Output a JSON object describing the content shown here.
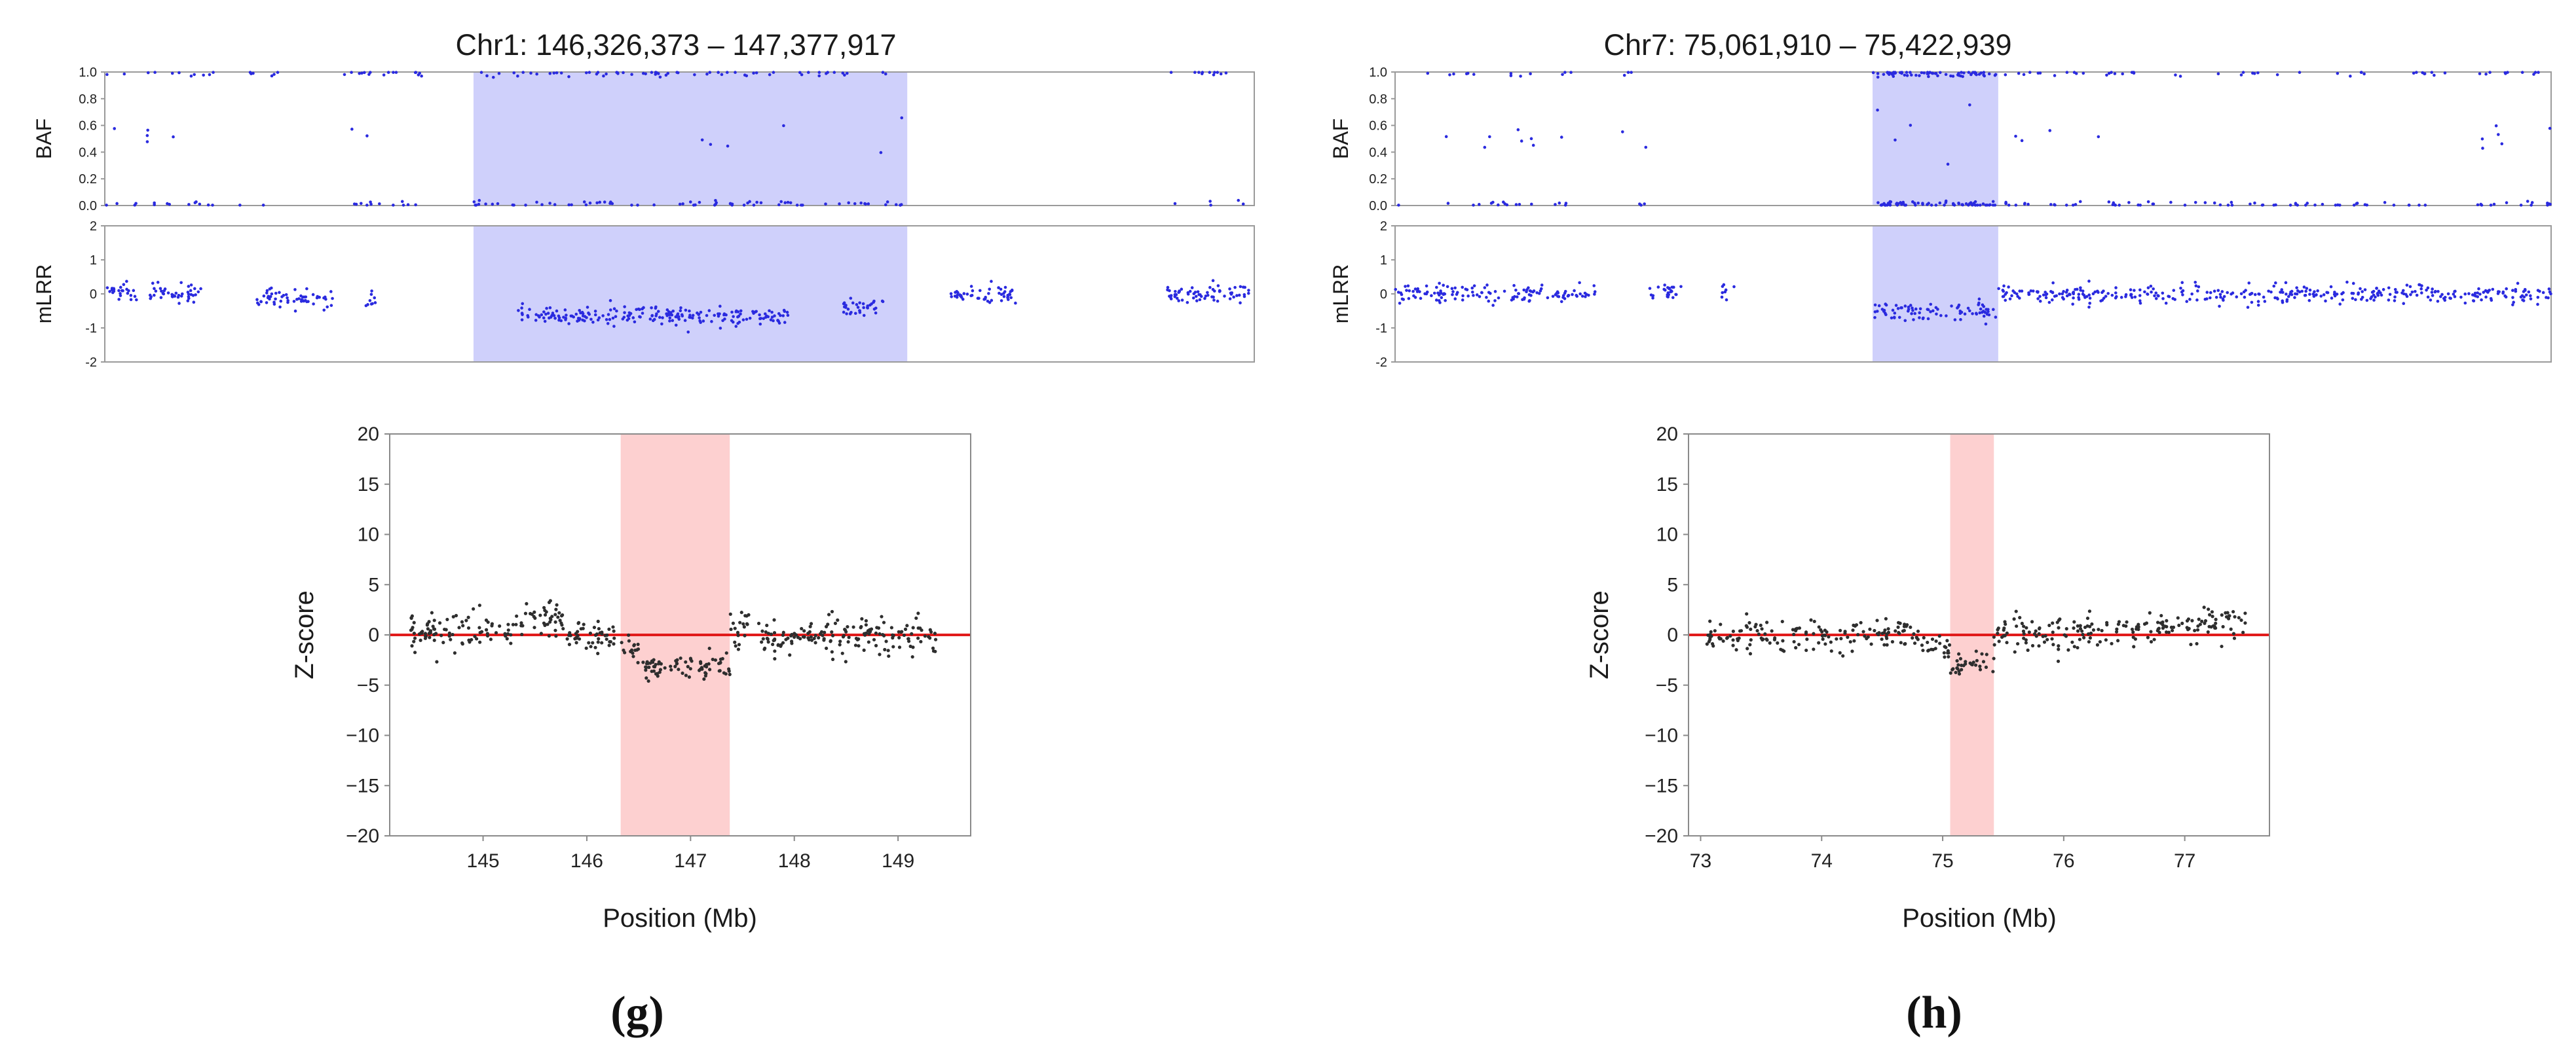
{
  "chart_data": [
    {
      "panel_label": "(g)",
      "title": "Chr1: 146,326,373 – 147,377,917",
      "baf": {
        "type": "scatter",
        "ylabel": "BAF",
        "ylim": [
          0,
          1
        ],
        "yticks": [
          "0.0",
          "0.2",
          "0.4",
          "0.6",
          "0.8",
          "1.0"
        ],
        "xlim": [
          144.3,
          149.6
        ],
        "highlight": [
          146.0,
          148.0
        ],
        "highlight_color": "#cfd0fb",
        "point_color": "#2a2adf",
        "segments": [
          {
            "x0": 144.3,
            "x1": 144.8,
            "level": "spread"
          },
          {
            "x0": 144.9,
            "x1": 145.1,
            "level": "few"
          },
          {
            "x0": 145.4,
            "x1": 145.8,
            "level": "spread"
          },
          {
            "x0": 146.0,
            "x1": 148.0,
            "level": "loh"
          },
          {
            "x0": 149.2,
            "x1": 149.6,
            "level": "edge"
          }
        ]
      },
      "mlrr": {
        "type": "scatter",
        "ylabel": "mLRR",
        "ylim": [
          -2,
          2
        ],
        "yticks": [
          "2",
          "1",
          "0",
          "-1",
          "-2"
        ],
        "xlim": [
          144.3,
          149.6
        ],
        "highlight": [
          146.0,
          148.0
        ],
        "highlight_color": "#cfd0fb",
        "point_color": "#2a2adf",
        "segments": [
          {
            "x0": 144.3,
            "x1": 144.45,
            "mean": 0.05
          },
          {
            "x0": 144.5,
            "x1": 144.75,
            "mean": 0.0
          },
          {
            "x0": 145.0,
            "x1": 145.35,
            "mean": -0.1
          },
          {
            "x0": 145.5,
            "x1": 145.55,
            "mean": -0.2
          },
          {
            "x0": 146.2,
            "x1": 147.45,
            "mean": -0.65
          },
          {
            "x0": 147.7,
            "x1": 147.9,
            "mean": -0.4
          },
          {
            "x0": 148.2,
            "x1": 148.5,
            "mean": 0.0
          },
          {
            "x0": 149.2,
            "x1": 149.6,
            "mean": 0.0
          }
        ]
      },
      "zscore": {
        "type": "scatter",
        "xlabel": "Position (Mb)",
        "ylabel": "Z-score",
        "xlim": [
          144.1,
          149.7
        ],
        "ylim": [
          -20,
          20
        ],
        "xticks": [
          145,
          146,
          147,
          148,
          149
        ],
        "yticks": [
          20,
          15,
          10,
          5,
          0,
          -5,
          -10,
          -15,
          -20
        ],
        "highlight": [
          146.326373,
          147.377917
        ],
        "highlight_color": "#fdd0d0",
        "baseline": 0,
        "baseline_color": "#e11b1b",
        "point_color": "#2e2e2e",
        "segments": [
          {
            "x0": 144.3,
            "x1": 145.3,
            "mean": 0.3,
            "sd": 1.0
          },
          {
            "x0": 145.3,
            "x1": 145.8,
            "mean": 1.5,
            "sd": 1.0
          },
          {
            "x0": 145.8,
            "x1": 146.326,
            "mean": -0.1,
            "sd": 0.6
          },
          {
            "x0": 146.326,
            "x1": 146.5,
            "mean": -1.5,
            "sd": 0.8
          },
          {
            "x0": 146.5,
            "x1": 147.38,
            "mean": -3.2,
            "sd": 0.6
          },
          {
            "x0": 147.38,
            "x1": 147.6,
            "mean": 0.8,
            "sd": 1.2
          },
          {
            "x0": 147.6,
            "x1": 148.0,
            "mean": -0.5,
            "sd": 0.9
          },
          {
            "x0": 148.0,
            "x1": 148.3,
            "mean": 0.0,
            "sd": 0.5
          },
          {
            "x0": 148.3,
            "x1": 149.4,
            "mean": 0.1,
            "sd": 1.0
          }
        ]
      }
    },
    {
      "panel_label": "(h)",
      "title": "Chr7: 75,061,910 – 75,422,939",
      "baf": {
        "type": "scatter",
        "ylabel": "BAF",
        "ylim": [
          0,
          1
        ],
        "yticks": [
          "0.0",
          "0.2",
          "0.4",
          "0.6",
          "0.8",
          "1.0"
        ],
        "xlim": [
          73.0,
          77.6
        ],
        "highlight": [
          74.9,
          75.4
        ],
        "highlight_color": "#cfd0fb",
        "point_color": "#2a2adf",
        "segments": [
          {
            "x0": 73.0,
            "x1": 73.3,
            "level": "few"
          },
          {
            "x0": 73.3,
            "x1": 73.7,
            "level": "spread"
          },
          {
            "x0": 73.9,
            "x1": 74.0,
            "level": "few"
          },
          {
            "x0": 74.9,
            "x1": 75.4,
            "level": "loh"
          },
          {
            "x0": 75.4,
            "x1": 75.8,
            "level": "spread"
          },
          {
            "x0": 75.8,
            "x1": 77.2,
            "level": "homo"
          },
          {
            "x0": 77.3,
            "x1": 77.6,
            "level": "spread"
          }
        ]
      },
      "mlrr": {
        "type": "scatter",
        "ylabel": "mLRR",
        "ylim": [
          -2,
          2
        ],
        "yticks": [
          "2",
          "1",
          "0",
          "-1",
          "-2"
        ],
        "xlim": [
          73.0,
          77.6
        ],
        "highlight": [
          74.9,
          75.4
        ],
        "highlight_color": "#cfd0fb",
        "point_color": "#2a2adf",
        "segments": [
          {
            "x0": 73.0,
            "x1": 73.8,
            "mean": 0.0
          },
          {
            "x0": 74.0,
            "x1": 74.15,
            "mean": 0.05
          },
          {
            "x0": 74.3,
            "x1": 74.35,
            "mean": 0.0
          },
          {
            "x0": 74.9,
            "x1": 75.4,
            "mean": -0.5
          },
          {
            "x0": 75.4,
            "x1": 77.6,
            "mean": 0.0
          }
        ]
      },
      "zscore": {
        "type": "scatter",
        "xlabel": "Position (Mb)",
        "ylabel": "Z-score",
        "xlim": [
          72.9,
          77.7
        ],
        "ylim": [
          -20,
          20
        ],
        "xticks": [
          73,
          74,
          75,
          76,
          77
        ],
        "yticks": [
          20,
          15,
          10,
          5,
          0,
          -5,
          -10,
          -15,
          -20
        ],
        "highlight": [
          75.06191,
          75.422939
        ],
        "highlight_color": "#fdd0d0",
        "baseline": 0,
        "baseline_color": "#e11b1b",
        "point_color": "#2e2e2e",
        "segments": [
          {
            "x0": 73.05,
            "x1": 74.8,
            "mean": 0.0,
            "sd": 0.8
          },
          {
            "x0": 74.8,
            "x1": 75.062,
            "mean": -0.8,
            "sd": 0.7
          },
          {
            "x0": 75.062,
            "x1": 75.423,
            "mean": -2.8,
            "sd": 0.7
          },
          {
            "x0": 75.423,
            "x1": 76.6,
            "mean": 0.2,
            "sd": 0.9
          },
          {
            "x0": 76.6,
            "x1": 77.5,
            "mean": 0.9,
            "sd": 1.0
          }
        ]
      }
    }
  ]
}
